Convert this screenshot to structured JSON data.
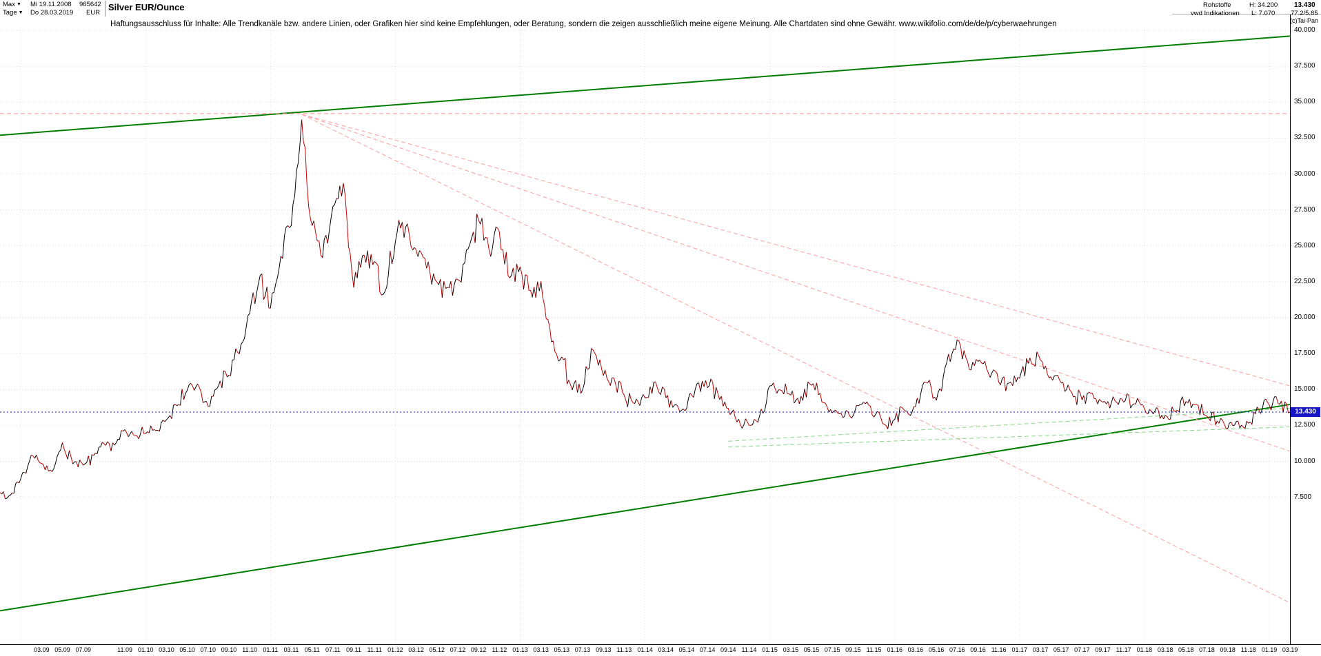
{
  "title": "Silver EUR/Ounce",
  "copyright": "(c)Tai-Pan",
  "disclaimer": "Haftungsausschluss für Inhalte: Alle Trendkanäle bzw. andere Linien, oder Grafiken hier sind keine Empfehlungen, oder Beratung, sondern die zeigen ausschließlich meine eigene Meinung. Alle Chartdaten sind ohne Gewähr.  www.wikifolio.com/de/de/p/cyberwaehrungen",
  "icons": {
    "dropdown": "▼"
  },
  "toolbar": {
    "range_label": "Max",
    "start_date": "Mi 19.11.2008",
    "instrument_id": "965642",
    "period_label": "Tage",
    "end_date": "Do 28.03.2019",
    "currency": "EUR"
  },
  "info_panel": {
    "group": "Rohstoffe",
    "source": "vwd Indikationen",
    "high_label": "H: 34.200",
    "low_label": "L: 7.070",
    "last_price": "13.430",
    "ratio": "77.2/5.85"
  },
  "chart_data": {
    "type": "line",
    "title": "Silver EUR/Ounce",
    "ylabel": "EUR",
    "x_start": "11.2008",
    "x_step": "1 month",
    "x_end": "03.2019",
    "current_price": 13.43,
    "current_price_label": "13.430",
    "high": 34.2,
    "low": 7.07,
    "ylim": [
      -2.7,
      40.2
    ],
    "grid": true,
    "colors": {
      "up": "#000000",
      "down": "#c40000",
      "channel": "#007c00",
      "resistance_dashed": "#ff9e9e",
      "support_dashed": "#86d886",
      "current": "#1717c8",
      "grid_h": "#eed2d2",
      "grid_v": "#eadada"
    },
    "values": [
      7.8,
      7.6,
      8.8,
      10.4,
      9.8,
      9.3,
      11.2,
      9.9,
      9.8,
      10.4,
      11.3,
      11.1,
      12.2,
      11.7,
      11.9,
      12.1,
      12.9,
      13.9,
      15.0,
      15.3,
      13.8,
      15.2,
      16.1,
      17.6,
      20.4,
      23.1,
      20.6,
      24.3,
      26.6,
      34.0,
      26.5,
      24.3,
      27.7,
      29.3,
      22.3,
      24.5,
      23.8,
      21.6,
      25.5,
      26.4,
      24.6,
      23.6,
      22.4,
      21.9,
      22.5,
      24.9,
      26.9,
      24.8,
      26.0,
      22.9,
      23.4,
      21.8,
      22.4,
      18.4,
      17.3,
      15.0,
      15.0,
      17.9,
      16.0,
      15.9,
      14.6,
      14.1,
      14.5,
      15.5,
      14.4,
      13.9,
      13.8,
      15.3,
      15.2,
      14.8,
      13.6,
      12.9,
      12.4,
      13.1,
      15.3,
      14.9,
      14.6,
      14.4,
      15.4,
      14.1,
      13.3,
      13.0,
      13.1,
      14.1,
      13.2,
      12.7,
      13.0,
      13.6,
      13.7,
      15.6,
      14.3,
      16.9,
      18.3,
      16.8,
      17.0,
      16.1,
      15.6,
      15.4,
      15.8,
      17.2,
      17.0,
      15.9,
      15.5,
      14.8,
      14.4,
      14.8,
      14.2,
      14.4,
      14.2,
      14.1,
      13.8,
      13.5,
      13.2,
      13.6,
      14.1,
      13.9,
      13.2,
      12.8,
      12.3,
      12.7,
      12.6,
      13.6,
      13.8,
      14.1,
      13.43
    ],
    "y_ticks": [
      {
        "value": 40,
        "label": "40.000"
      },
      {
        "value": 37.5,
        "label": "37.500"
      },
      {
        "value": 35,
        "label": "35.000"
      },
      {
        "value": 32.5,
        "label": "32.500"
      },
      {
        "value": 30,
        "label": "30.000"
      },
      {
        "value": 27.5,
        "label": "27.500"
      },
      {
        "value": 25,
        "label": "25.000"
      },
      {
        "value": 22.5,
        "label": "22.500"
      },
      {
        "value": 20,
        "label": "20.000"
      },
      {
        "value": 17.5,
        "label": "17.500"
      },
      {
        "value": 15,
        "label": "15.000"
      },
      {
        "value": 12.5,
        "label": "12.500"
      },
      {
        "value": 10,
        "label": "10.000"
      },
      {
        "value": 7.5,
        "label": "7.500"
      }
    ],
    "x_ticks": [
      "03.09",
      "05.09",
      "07.09",
      "11.09",
      "01.10",
      "03.10",
      "05.10",
      "07.10",
      "09.10",
      "11.10",
      "01.11",
      "03.11",
      "05.11",
      "07.11",
      "09.11",
      "11.11",
      "01.12",
      "03.12",
      "05.12",
      "07.12",
      "09.12",
      "11.12",
      "01.13",
      "03.13",
      "05.13",
      "07.13",
      "09.13",
      "11.13",
      "01.14",
      "03.14",
      "05.14",
      "07.14",
      "09.14",
      "11.14",
      "01.15",
      "03.15",
      "05.15",
      "07.15",
      "09.15",
      "11.15",
      "01.16",
      "03.16",
      "05.16",
      "07.16",
      "09.16",
      "11.16",
      "01.17",
      "03.17",
      "05.17",
      "07.17",
      "09.17",
      "11.17",
      "01.18",
      "03.18",
      "05.18",
      "07.18",
      "09.18",
      "11.18",
      "01.19",
      "03.19"
    ],
    "trendlines": [
      {
        "name": "upper-channel-line",
        "m1": 0,
        "p1": 32.7,
        "m2": 124,
        "p2": 39.6,
        "style": "solid",
        "color": "#007c00",
        "w": 2
      },
      {
        "name": "lower-channel-line",
        "m1": 0,
        "p1": -0.4,
        "m2": 124,
        "p2": 13.96,
        "style": "solid",
        "color": "#007c00",
        "w": 2
      },
      {
        "name": "high-horizontal-line",
        "m1": 0,
        "p1": 34.2,
        "m2": 124,
        "p2": 34.2,
        "style": "dashed",
        "color": "#ff8f8f",
        "w": 1
      },
      {
        "name": "resistance-fan-1",
        "m1": 29,
        "p1": 34.15,
        "m2": 124,
        "p2": 15.25,
        "style": "dashed",
        "color": "#ff9e9e",
        "w": 1
      },
      {
        "name": "resistance-fan-2",
        "m1": 29,
        "p1": 34.15,
        "m2": 124,
        "p2": 10.7,
        "style": "dashed",
        "color": "#ff9e9e",
        "w": 1
      },
      {
        "name": "resistance-fan-3",
        "m1": 29,
        "p1": 34.15,
        "m2": 124,
        "p2": 0.15,
        "style": "dashed",
        "color": "#ff9e9e",
        "w": 1
      },
      {
        "name": "support-dashed-1",
        "m1": 70,
        "p1": 11.4,
        "m2": 124,
        "p2": 13.7,
        "style": "dashed",
        "color": "#86d886",
        "w": 1
      },
      {
        "name": "support-dashed-2",
        "m1": 70,
        "p1": 11.0,
        "m2": 124,
        "p2": 12.4,
        "style": "dashed",
        "color": "#86d886",
        "w": 1
      },
      {
        "name": "current-price-line",
        "m1": 0,
        "p1": 13.43,
        "m2": 124,
        "p2": 13.43,
        "style": "dotted",
        "color": "#1717c8",
        "w": 1
      }
    ]
  }
}
